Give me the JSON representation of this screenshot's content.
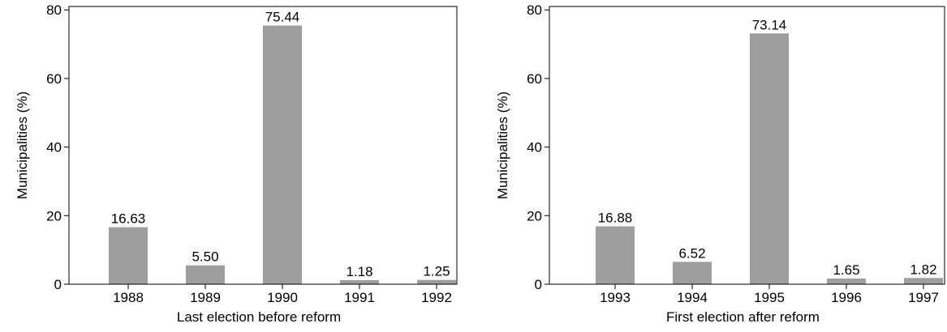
{
  "chart_data": [
    {
      "type": "bar",
      "title": "",
      "xlabel": "Last election before reform",
      "ylabel": "Municipalities (%)",
      "categories": [
        "1988",
        "1989",
        "1990",
        "1991",
        "1992"
      ],
      "values": [
        16.63,
        5.5,
        75.44,
        1.18,
        1.25
      ],
      "data_labels": [
        "16.63",
        "5.50",
        "75.44",
        "1.18",
        "1.25"
      ],
      "ylim": [
        0,
        81
      ],
      "yticks": [
        0,
        20,
        40,
        60,
        80
      ],
      "ytick_labels": [
        "0",
        "20",
        "40",
        "60",
        "80"
      ],
      "grid": false,
      "bar_color": "#9e9e9e"
    },
    {
      "type": "bar",
      "title": "",
      "xlabel": "First election after reform",
      "ylabel": "Municipalities (%)",
      "categories": [
        "1993",
        "1994",
        "1995",
        "1996",
        "1997"
      ],
      "values": [
        16.88,
        6.52,
        73.14,
        1.65,
        1.82
      ],
      "data_labels": [
        "16.88",
        "6.52",
        "73.14",
        "1.65",
        "1.82"
      ],
      "ylim": [
        0,
        81
      ],
      "yticks": [
        0,
        20,
        40,
        60,
        80
      ],
      "ytick_labels": [
        "0",
        "20",
        "40",
        "60",
        "80"
      ],
      "grid": false,
      "bar_color": "#9e9e9e"
    }
  ]
}
